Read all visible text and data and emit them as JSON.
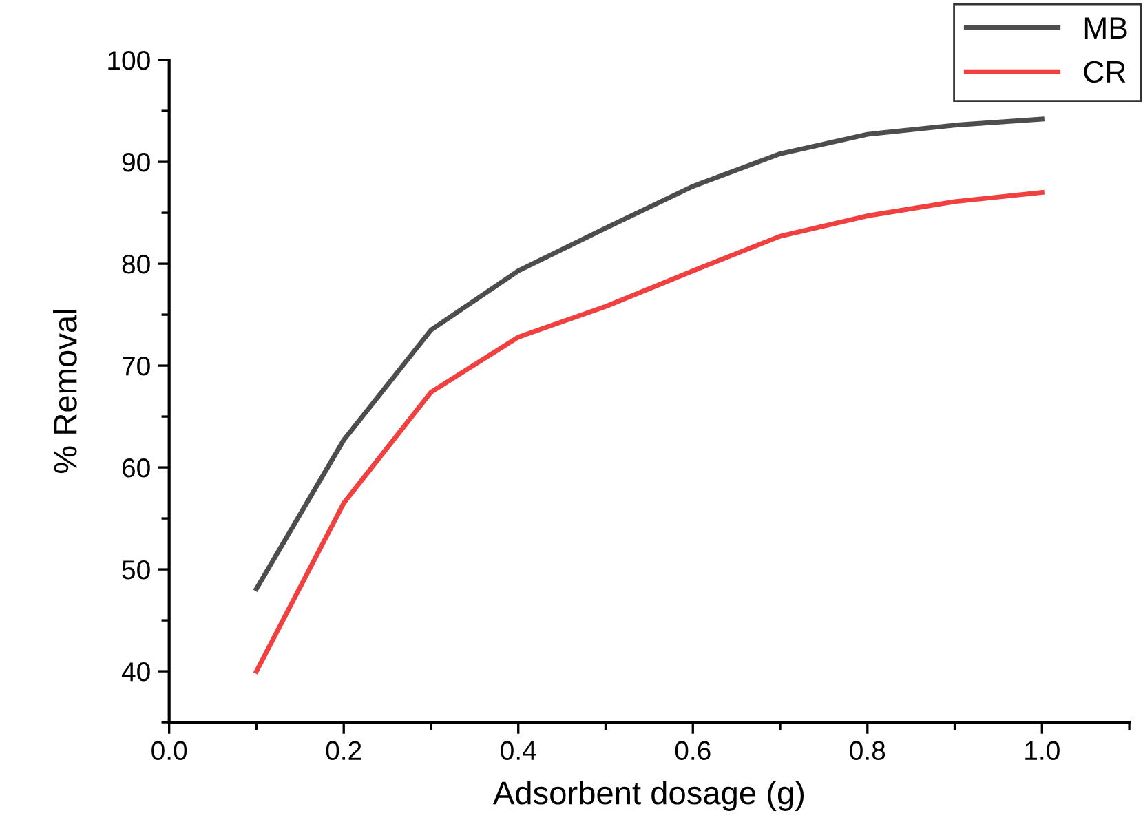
{
  "chart_data": {
    "type": "line",
    "xlabel": "Adsorbent dosage (g)",
    "ylabel": "% Removal",
    "x": [
      0.1,
      0.2,
      0.3,
      0.4,
      0.5,
      0.6,
      0.7,
      0.8,
      0.9,
      1.0
    ],
    "series": [
      {
        "name": "MB",
        "color": "#4d4d4d",
        "values": [
          48.1,
          62.7,
          73.5,
          79.3,
          83.5,
          87.6,
          90.8,
          92.7,
          93.6,
          94.2
        ]
      },
      {
        "name": "CR",
        "color": "#f04040",
        "values": [
          40,
          56.5,
          67.4,
          72.8,
          75.8,
          79.3,
          82.7,
          84.7,
          86.1,
          87.0
        ]
      }
    ],
    "xlim": [
      0,
      1.1
    ],
    "xticks": [
      {
        "value": 0,
        "label": "0.0"
      },
      0.2,
      0.4,
      0.6,
      0.8,
      {
        "value": 1,
        "label": "1.0"
      }
    ],
    "ylim": [
      35,
      100
    ],
    "yticks": [
      40,
      50,
      60,
      70,
      80,
      90,
      100
    ],
    "grid": false,
    "legend": "top right",
    "marker": "none",
    "line_style": "solid"
  }
}
